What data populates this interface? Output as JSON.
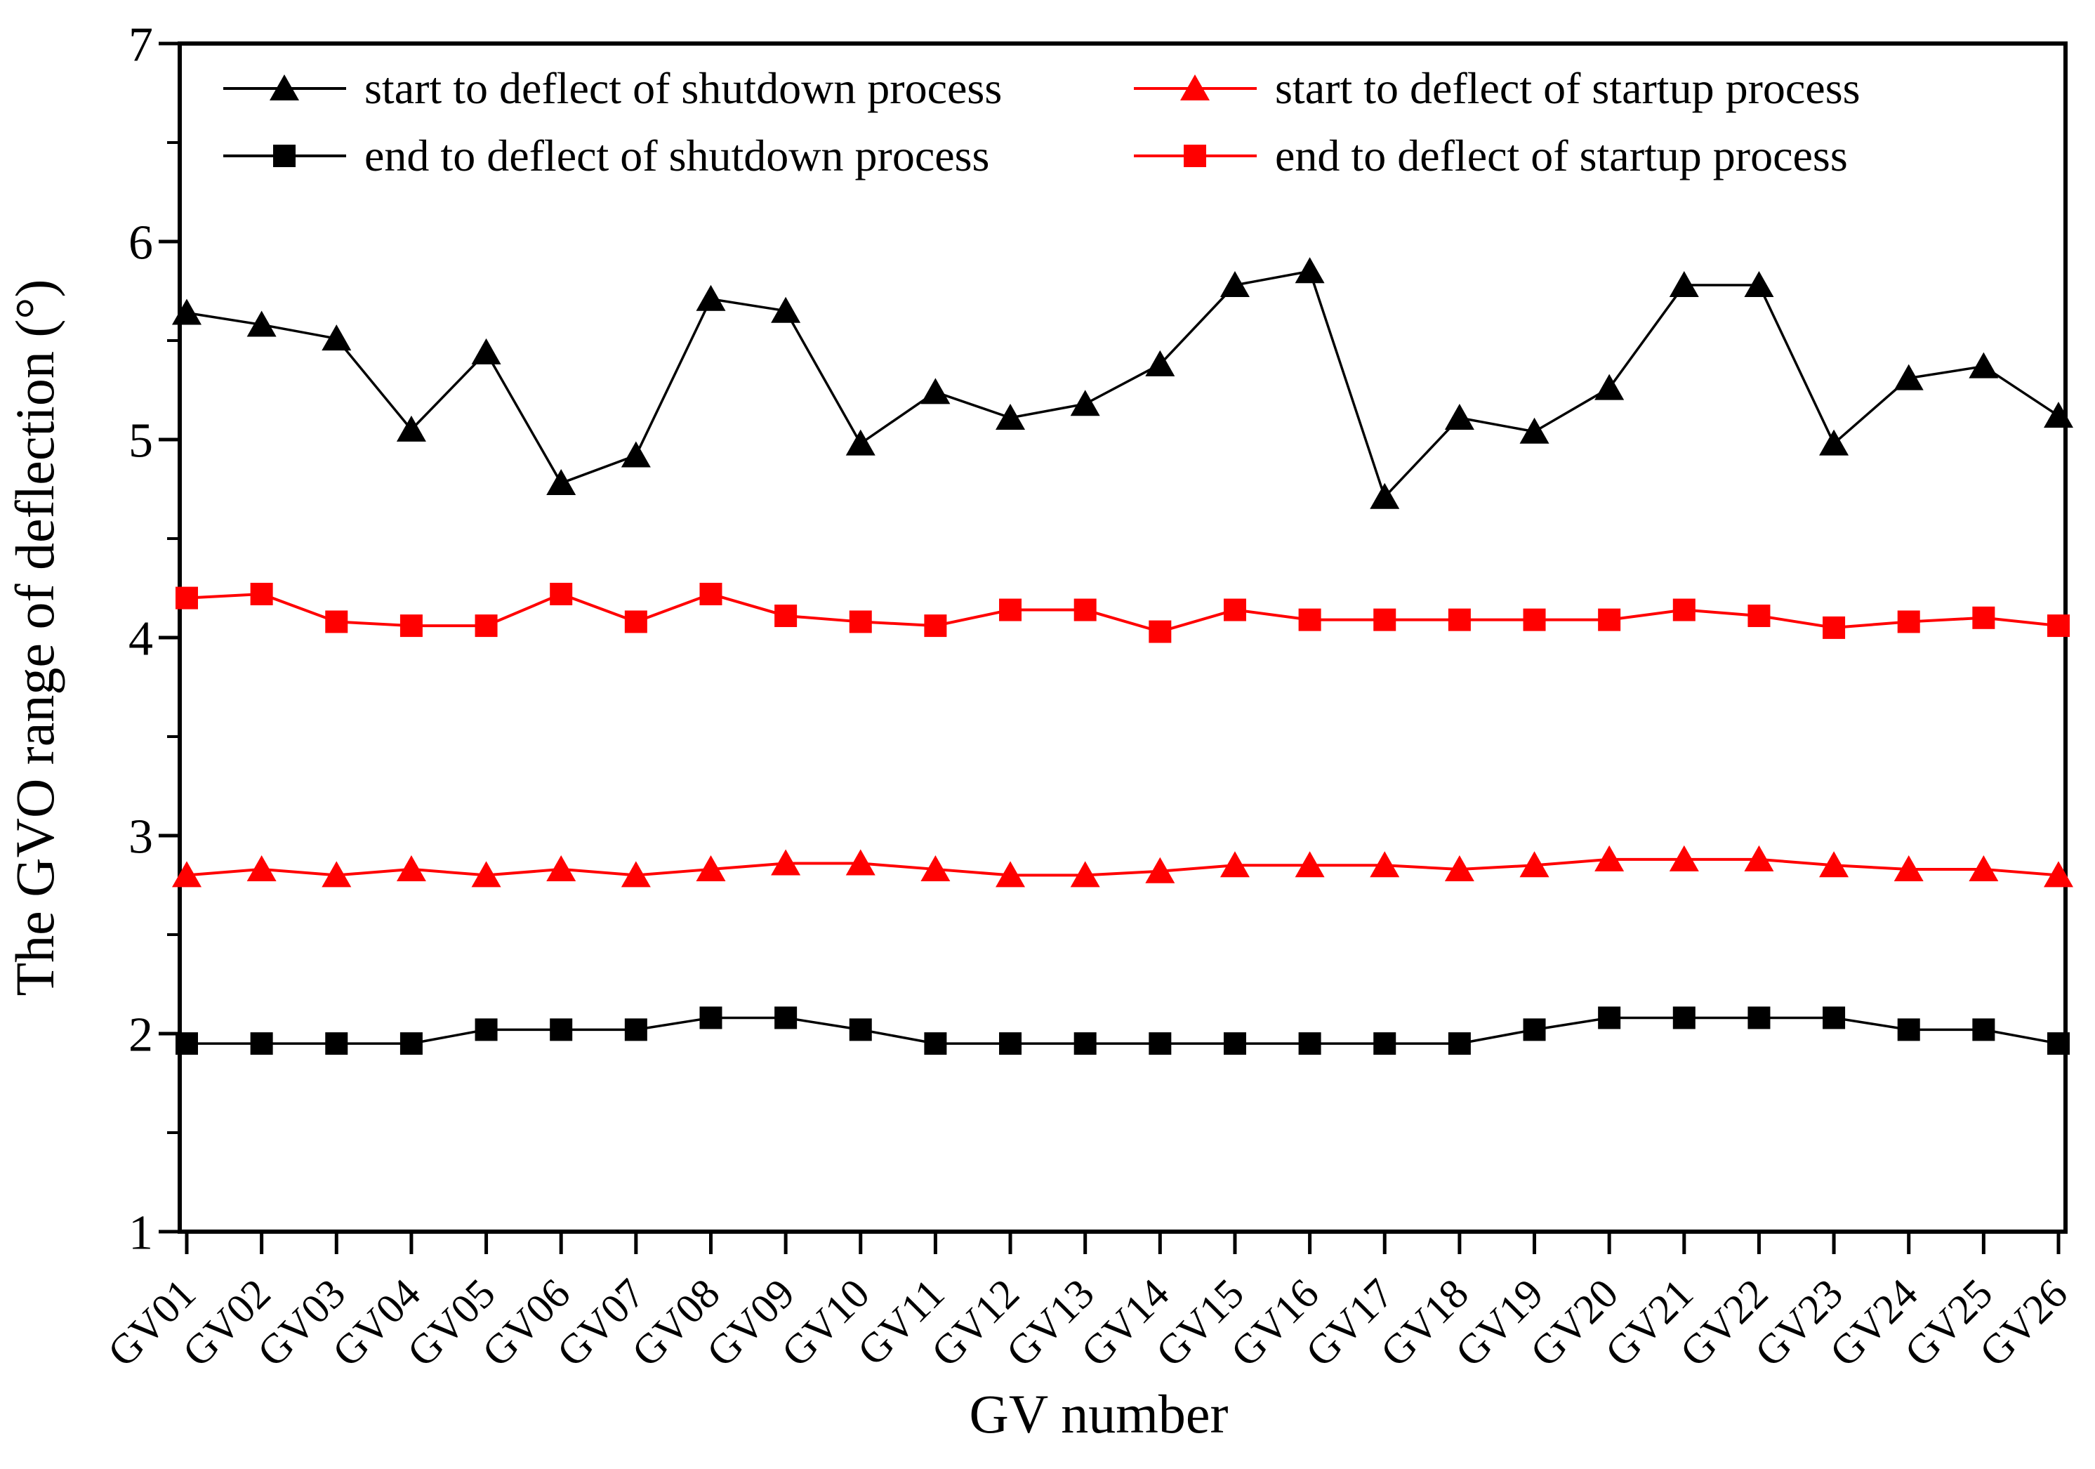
{
  "figure": {
    "background": "#ffffff",
    "black": "#000000",
    "red": "#ff0000"
  },
  "chart_data": {
    "type": "line",
    "title": "",
    "xlabel": "GV number",
    "ylabel": "The GVO range of deflection (°)",
    "ylim": [
      1,
      7
    ],
    "y_major_ticks": [
      1,
      2,
      3,
      4,
      5,
      6,
      7
    ],
    "y_minor_ticks": [
      1.5,
      2.5,
      3.5,
      4.5,
      5.5,
      6.5
    ],
    "grid": false,
    "legend_position": "top-inside-two-columns",
    "categories": [
      "GV01",
      "GV02",
      "GV03",
      "GV04",
      "GV05",
      "GV06",
      "GV07",
      "GV08",
      "GV09",
      "GV10",
      "GV11",
      "GV12",
      "GV13",
      "GV14",
      "GV15",
      "GV16",
      "GV17",
      "GV18",
      "GV19",
      "GV20",
      "GV21",
      "GV22",
      "GV23",
      "GV24",
      "GV25",
      "GV26"
    ],
    "series": [
      {
        "name": "start to deflect of shutdown process",
        "color": "#000000",
        "marker": "triangle",
        "values": [
          5.64,
          5.58,
          5.51,
          5.05,
          5.44,
          4.78,
          4.92,
          5.71,
          5.65,
          4.98,
          5.24,
          5.11,
          5.18,
          5.38,
          5.78,
          5.85,
          4.71,
          5.11,
          5.04,
          5.26,
          5.78,
          5.78,
          4.98,
          5.31,
          5.37,
          5.12
        ]
      },
      {
        "name": "end to deflect of shutdown process",
        "color": "#000000",
        "marker": "square",
        "values": [
          1.95,
          1.95,
          1.95,
          1.95,
          2.02,
          2.02,
          2.02,
          2.08,
          2.08,
          2.02,
          1.95,
          1.95,
          1.95,
          1.95,
          1.95,
          1.95,
          1.95,
          1.95,
          2.02,
          2.08,
          2.08,
          2.08,
          2.08,
          2.02,
          2.02,
          1.95
        ]
      },
      {
        "name": "start to deflect of startup process",
        "color": "#ff0000",
        "marker": "triangle",
        "values": [
          2.8,
          2.83,
          2.8,
          2.83,
          2.8,
          2.83,
          2.8,
          2.83,
          2.86,
          2.86,
          2.83,
          2.8,
          2.8,
          2.82,
          2.85,
          2.85,
          2.85,
          2.83,
          2.85,
          2.88,
          2.88,
          2.88,
          2.85,
          2.83,
          2.83,
          2.8
        ]
      },
      {
        "name": "end to deflect of startup process",
        "color": "#ff0000",
        "marker": "square",
        "values": [
          4.2,
          4.22,
          4.08,
          4.06,
          4.06,
          4.22,
          4.08,
          4.22,
          4.11,
          4.08,
          4.06,
          4.14,
          4.14,
          4.03,
          4.14,
          4.09,
          4.09,
          4.09,
          4.09,
          4.09,
          4.14,
          4.11,
          4.05,
          4.08,
          4.1,
          4.06
        ]
      }
    ]
  }
}
